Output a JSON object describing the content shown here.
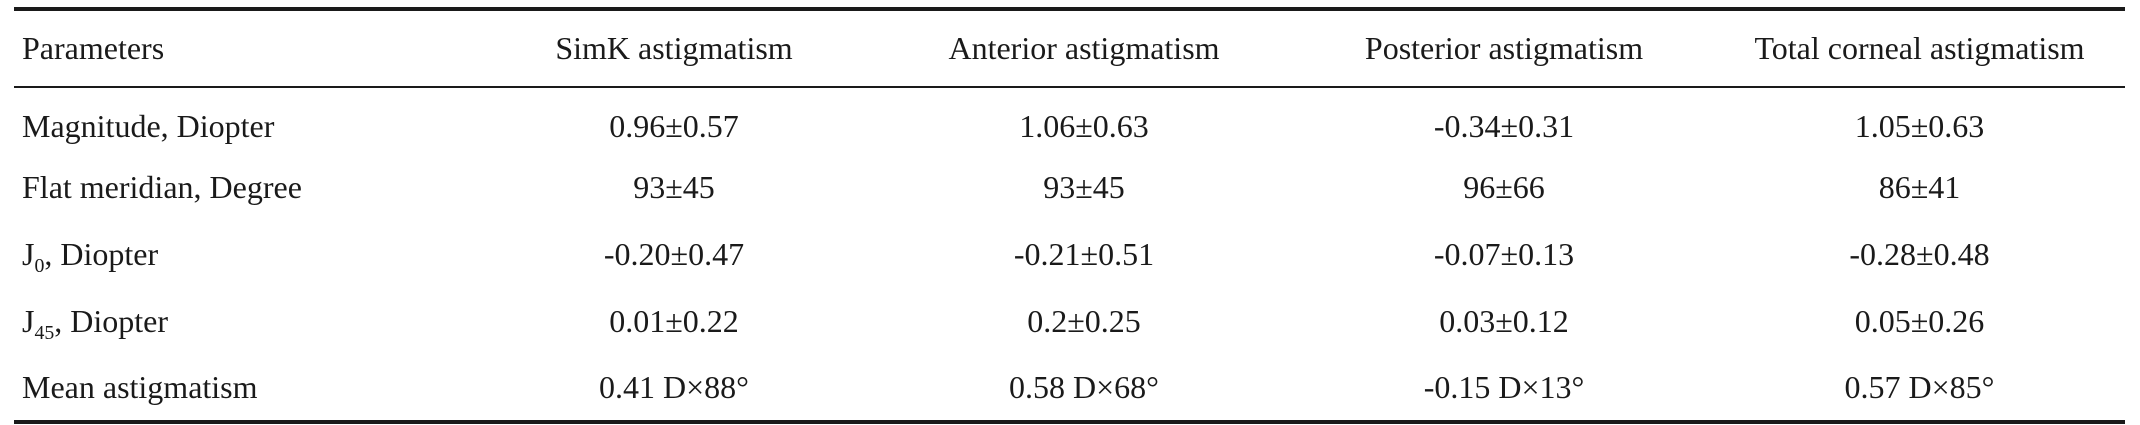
{
  "table": {
    "headers": [
      "Parameters",
      "SimK astigmatism",
      "Anterior astigmatism",
      "Posterior astigmatism",
      "Total corneal astigmatism"
    ],
    "rows": [
      {
        "param": {
          "text": "Magnitude, Diopter"
        },
        "values": [
          "0.96±0.57",
          "1.06±0.63",
          "-0.34±0.31",
          "1.05±0.63"
        ]
      },
      {
        "param": {
          "text": "Flat meridian, Degree"
        },
        "values": [
          "93±45",
          "93±45",
          "96±66",
          "86±41"
        ]
      },
      {
        "param": {
          "base": "J",
          "sub": "0",
          "suffix": ", Diopter"
        },
        "values": [
          "-0.20±0.47",
          "-0.21±0.51",
          "-0.07±0.13",
          "-0.28±0.48"
        ]
      },
      {
        "param": {
          "base": "J",
          "sub": "45",
          "suffix": ", Diopter"
        },
        "values": [
          "0.01±0.22",
          "0.2±0.25",
          "0.03±0.12",
          "0.05±0.26"
        ]
      },
      {
        "param": {
          "text": "Mean astigmatism"
        },
        "values": [
          "0.41 D×88°",
          "0.58 D×68°",
          "-0.15 D×13°",
          "0.57 D×85°"
        ]
      }
    ]
  }
}
